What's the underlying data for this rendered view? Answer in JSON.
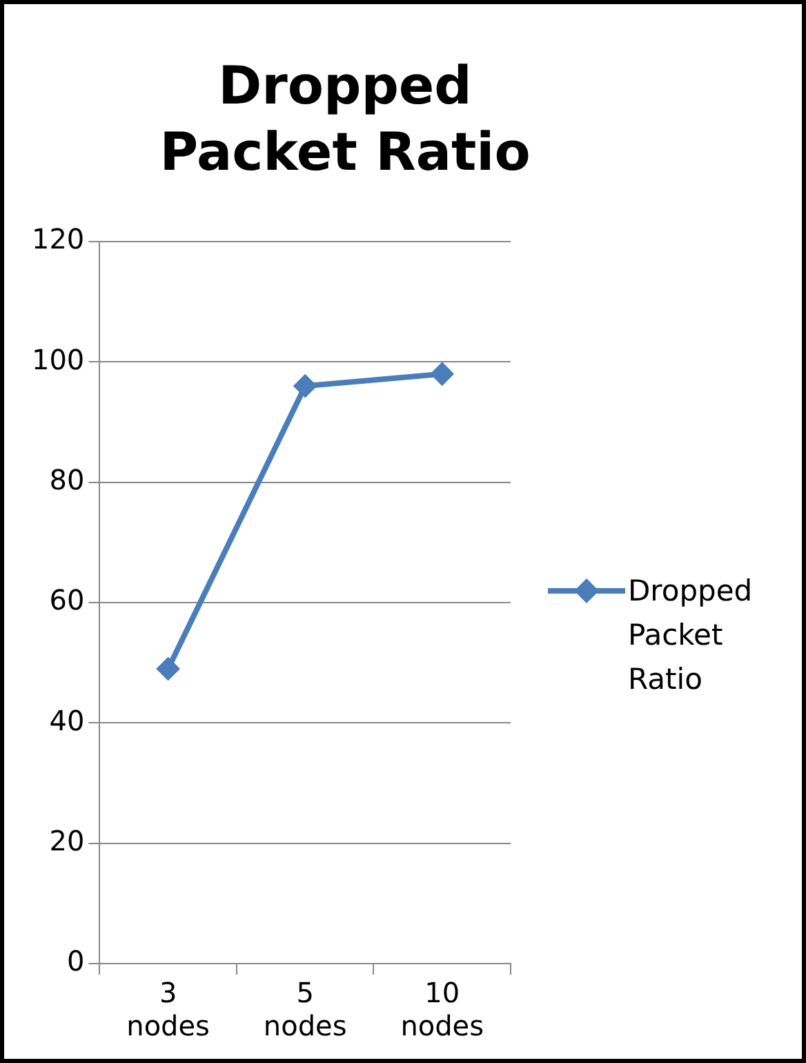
{
  "chart_data": {
    "type": "line",
    "title": "Dropped Packet Ratio",
    "categories": [
      "3 nodes",
      "5 nodes",
      "10 nodes"
    ],
    "series": [
      {
        "name": "Dropped Packet Ratio",
        "color": "#4a7ebb",
        "values": [
          49,
          96,
          98
        ]
      }
    ],
    "ylim": [
      0,
      120
    ],
    "yticks": [
      0,
      20,
      40,
      60,
      80,
      100,
      120
    ],
    "grid": "y",
    "legend": "right",
    "marker": "diamond",
    "line_style": "solid"
  }
}
